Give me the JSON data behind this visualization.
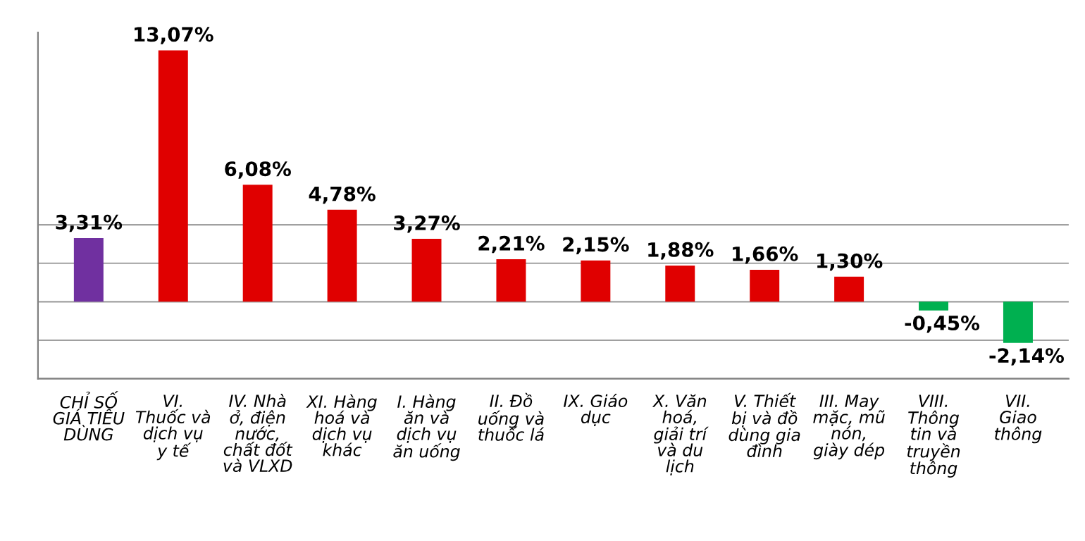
{
  "chart_data": {
    "type": "bar",
    "categories": [
      "CHỈ SỐ GIÁ TIÊU DÙNG",
      "VI. Thuốc và dịch vụ y tế",
      "IV. Nhà ở, điện nước, chất đốt và VLXD",
      "XI. Hàng hoá và dịch vụ khác",
      "I. Hàng ăn và dịch vụ ăn uống",
      "II. Đồ uống và thuốc lá",
      "IX. Giáo dục",
      "X. Văn hoá, giải trí và du lịch",
      "V. Thiết bị và đồ dùng gia đình",
      "III. May mặc, mũ nón, giày dép",
      "VIII. Thông tin và truyền thông",
      "VII. Giao thông"
    ],
    "values": [
      3.31,
      13.07,
      6.08,
      4.78,
      3.27,
      2.21,
      2.15,
      1.88,
      1.66,
      1.3,
      -0.45,
      -2.14
    ],
    "colors": [
      "#7030a0",
      "#e00000",
      "#e00000",
      "#e00000",
      "#e00000",
      "#e00000",
      "#e00000",
      "#e00000",
      "#e00000",
      "#e00000",
      "#00b050",
      "#00b050"
    ],
    "value_labels": [
      "3,31%",
      "13,07%",
      "6,08%",
      "4,78%",
      "3,27%",
      "2,21%",
      "2,15%",
      "1,88%",
      "1,66%",
      "1,30%",
      "-0,45%",
      "-2,14%"
    ],
    "ylim": [
      -4,
      14
    ],
    "yticks": [
      {
        "value": -4,
        "label": null
      },
      {
        "value": -2,
        "label": null
      },
      {
        "value": 0,
        "label": null
      },
      {
        "value": 2,
        "label": null
      },
      {
        "value": 4,
        "label": null
      }
    ],
    "grid": "y",
    "tick_labels": "x"
  }
}
